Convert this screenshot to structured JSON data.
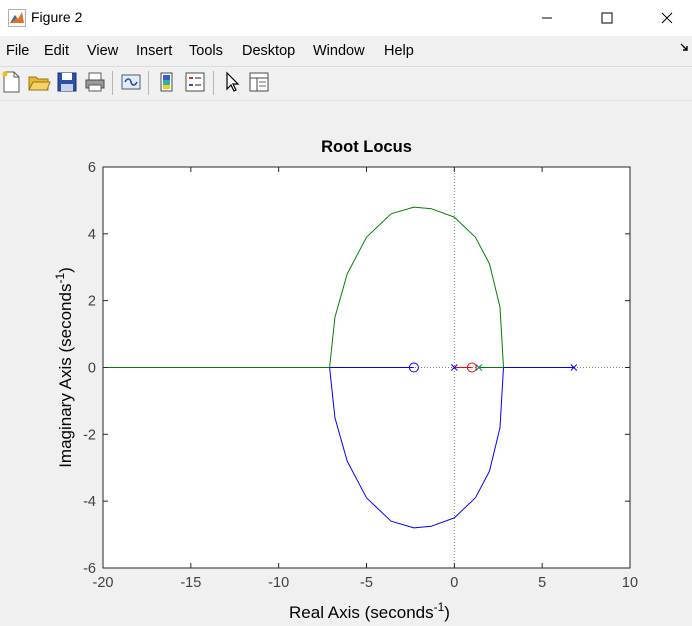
{
  "window": {
    "title": "Figure 2"
  },
  "menu": {
    "items": [
      "File",
      "Edit",
      "View",
      "Insert",
      "Tools",
      "Desktop",
      "Window",
      "Help"
    ]
  },
  "toolbar": {
    "buttons": [
      "new-figure",
      "open-file",
      "save-figure",
      "print-figure",
      "link-plot",
      "colorbar",
      "legend",
      "edit-plot",
      "property-inspector"
    ]
  },
  "chart_data": {
    "type": "line",
    "title": "Root Locus",
    "xlabel": "Real Axis (seconds",
    "xlabel_sup": "-1",
    "xlabel_close": ")",
    "ylabel": "Imaginary Axis (seconds",
    "ylabel_sup": "-1",
    "ylabel_close": ")",
    "xlim": [
      -20,
      10
    ],
    "ylim": [
      -6,
      6
    ],
    "xticks": [
      -20,
      -15,
      -10,
      -5,
      0,
      5,
      10
    ],
    "yticks": [
      -6,
      -4,
      -2,
      0,
      2,
      4,
      6
    ],
    "grid": false,
    "reference_lines": "dotted lines at x=0 and y=0",
    "poles": [
      [
        0,
        0
      ],
      [
        1.4,
        0
      ],
      [
        6.8,
        0
      ]
    ],
    "zeros": [
      [
        -2.3,
        0
      ],
      [
        1.0,
        0
      ]
    ],
    "colors": {
      "blue": "#0000ff",
      "green": "#008000",
      "red": "#ff0000"
    },
    "branches": [
      {
        "color": "blue",
        "segments": [
          {
            "x": [
              6.8,
              2.8
            ],
            "y": [
              0,
              0
            ]
          },
          {
            "x": [
              2.8,
              2.6,
              2.0,
              1.2,
              0.0,
              -1.3,
              -2.3,
              -3.6,
              -5.0,
              -6.1,
              -6.8,
              -7.1
            ],
            "y": [
              0,
              -1.8,
              -3.1,
              -3.9,
              -4.5,
              -4.75,
              -4.8,
              -4.6,
              -3.9,
              -2.8,
              -1.5,
              0
            ]
          },
          {
            "x": [
              -7.1,
              -2.3
            ],
            "y": [
              0,
              0
            ]
          }
        ]
      },
      {
        "color": "green",
        "segments": [
          {
            "x": [
              1.4,
              2.8
            ],
            "y": [
              0,
              0
            ]
          },
          {
            "x": [
              2.8,
              2.6,
              2.0,
              1.2,
              0.0,
              -1.3,
              -2.3,
              -3.6,
              -5.0,
              -6.1,
              -6.8,
              -7.1
            ],
            "y": [
              0,
              1.8,
              3.1,
              3.9,
              4.5,
              4.75,
              4.8,
              4.6,
              3.9,
              2.8,
              1.5,
              0
            ]
          },
          {
            "x": [
              -7.1,
              -20
            ],
            "y": [
              0,
              0
            ]
          }
        ]
      },
      {
        "color": "red",
        "segments": [
          {
            "x": [
              0,
              1.0
            ],
            "y": [
              0,
              0
            ]
          }
        ]
      }
    ]
  }
}
